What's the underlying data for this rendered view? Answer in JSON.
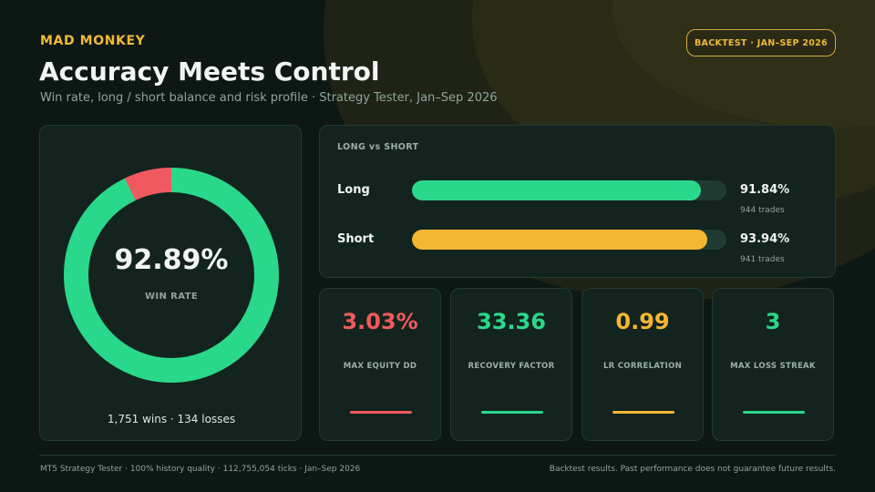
{
  "header": {
    "brand": "MAD MONKEY",
    "title": "Accuracy Meets Control",
    "subtitle": "Win rate, long / short balance and risk profile  ·  Strategy Tester, Jan–Sep 2026",
    "badge": "BACKTEST · JAN–SEP 2026"
  },
  "win_rate": {
    "value": "92.89%",
    "label": "WIN RATE",
    "fraction": 0.9289,
    "summary": "1,751 wins  ·  134 losses",
    "win_color": "#2ad88b",
    "loss_color": "#f05a5e"
  },
  "long_short": {
    "title": "LONG vs SHORT",
    "rows": [
      {
        "name": "Long",
        "pct": "91.84%",
        "trades": "944 trades",
        "fraction": 0.9184,
        "color": "#2ad88b"
      },
      {
        "name": "Short",
        "pct": "93.94%",
        "trades": "941 trades",
        "fraction": 0.9394,
        "color": "#f5b731"
      }
    ]
  },
  "metrics": [
    {
      "value": "3.03%",
      "label": "MAX EQUITY DD",
      "color": "#f05a5e"
    },
    {
      "value": "33.36",
      "label": "RECOVERY FACTOR",
      "color": "#2ad88b"
    },
    {
      "value": "0.99",
      "label": "LR CORRELATION",
      "color": "#f5b731"
    },
    {
      "value": "3",
      "label": "MAX LOSS STREAK",
      "color": "#2ad88b"
    }
  ],
  "footer": {
    "left": "MT5 Strategy Tester · 100% history quality · 112,755,054 ticks · Jan–Sep 2026",
    "right": "Backtest results. Past performance does not guarantee future results."
  }
}
